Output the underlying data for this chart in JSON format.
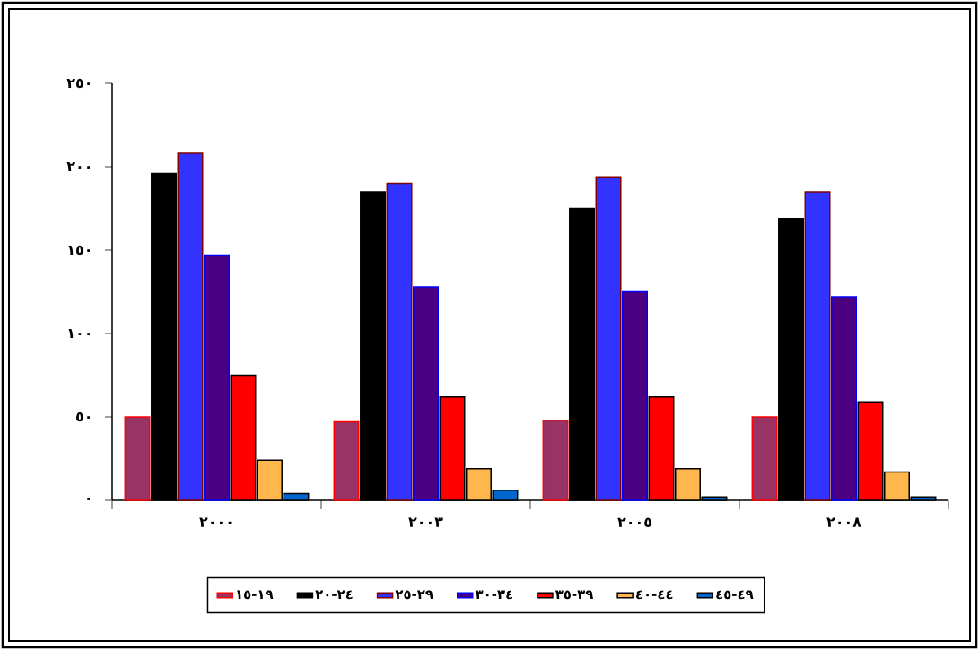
{
  "chart_data": {
    "type": "bar",
    "categories": [
      "٢٠٠٠",
      "٢٠٠٣",
      "٢٠٠٥",
      "٢٠٠٨"
    ],
    "series": [
      {
        "name": "١٥-١٩",
        "color": "#993366",
        "values": [
          50,
          47,
          48,
          50
        ]
      },
      {
        "name": "٢٠-٢٤",
        "color": "#000000",
        "values": [
          196,
          185,
          175,
          169
        ]
      },
      {
        "name": "٢٥-٢٩",
        "color": "#3333ff",
        "values": [
          208,
          190,
          194,
          185
        ]
      },
      {
        "name": "٣٠-٣٤",
        "color": "#4b0082",
        "values": [
          147,
          128,
          125,
          122
        ]
      },
      {
        "name": "٣٥-٣٩",
        "color": "#ff0000",
        "values": [
          75,
          62,
          62,
          59
        ]
      },
      {
        "name": "٤٠-٤٤",
        "color": "#ffb74d",
        "values": [
          24,
          19,
          19,
          17
        ]
      },
      {
        "name": "٤٥-٤٩",
        "color": "#0066cc",
        "values": [
          4,
          6,
          2,
          2
        ]
      }
    ],
    "ylim": [
      0,
      250
    ],
    "yticks": [
      {
        "value": 0,
        "label": "٠"
      },
      {
        "value": 50,
        "label": "٥٠"
      },
      {
        "value": 100,
        "label": "١٠٠"
      },
      {
        "value": 150,
        "label": "١٥٠"
      },
      {
        "value": 200,
        "label": "٢٠٠"
      },
      {
        "value": 250,
        "label": "٢٥٠"
      }
    ],
    "grid": false,
    "legend": "bottom"
  }
}
